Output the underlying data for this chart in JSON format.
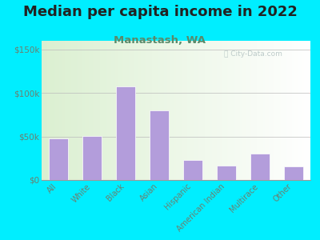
{
  "title": "Median per capita income in 2022",
  "subtitle": "Manastash, WA",
  "categories": [
    "All",
    "White",
    "Black",
    "Asian",
    "Hispanic",
    "American Indian",
    "Multirace",
    "Other"
  ],
  "values": [
    48000,
    51000,
    108000,
    80000,
    23000,
    17000,
    30000,
    16000
  ],
  "bar_color": "#b39ddb",
  "title_fontsize": 13,
  "subtitle_fontsize": 9.5,
  "subtitle_color": "#5a8a6a",
  "tick_color": "#6b8070",
  "background_outer": "#00eeff",
  "ylim": [
    0,
    160000
  ],
  "yticks": [
    0,
    50000,
    100000,
    150000
  ],
  "ytick_labels": [
    "$0",
    "$50k",
    "$100k",
    "$150k"
  ],
  "watermark": "City-Data.com"
}
